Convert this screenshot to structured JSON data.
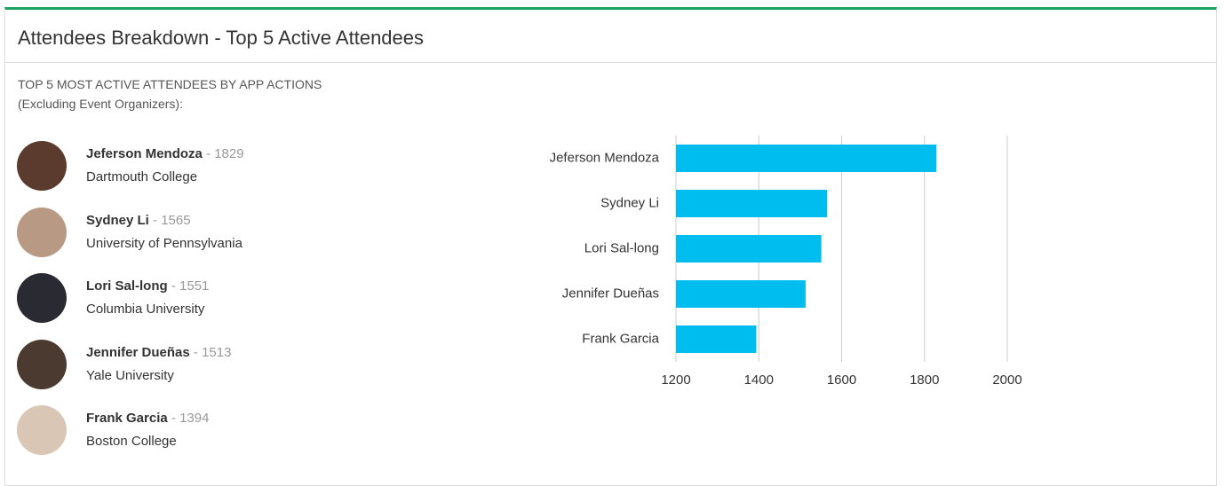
{
  "header": {
    "title": "Attendees Breakdown - Top 5 Active Attendees"
  },
  "list": {
    "title": "TOP 5 MOST ACTIVE ATTENDEES BY APP ACTIONS (Excluding Event Organizers):",
    "separator": "-",
    "schools": [
      "Dartmouth College",
      "University of Pennsylvania",
      "Columbia University",
      "Yale University",
      "Boston College"
    ]
  },
  "chart_data": {
    "type": "hbar",
    "categories": [
      "Jeferson Mendoza",
      "Sydney Li",
      "Lori Sal-long",
      "Jennifer Dueñas",
      "Frank Garcia"
    ],
    "values": [
      1829,
      1565,
      1551,
      1513,
      1394
    ],
    "color": "#00bdef",
    "xlim": [
      1200,
      2000
    ],
    "xticks": [
      1200,
      1400,
      1600,
      1800,
      2000
    ],
    "grid": true
  }
}
